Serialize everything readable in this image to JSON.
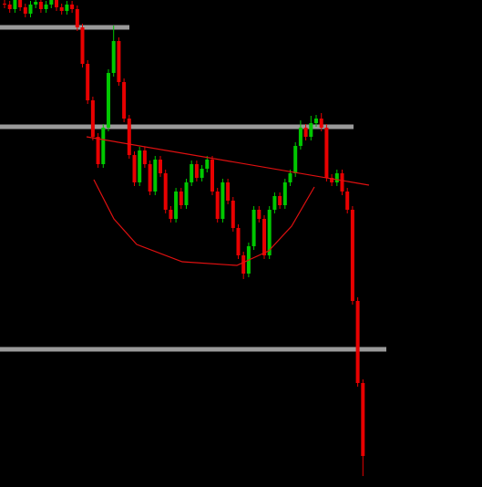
{
  "chart_data": {
    "type": "candlestick",
    "open": [
      530,
      529,
      524,
      534,
      526,
      519,
      529,
      532,
      524,
      529,
      534,
      526,
      522,
      529,
      524,
      504,
      464,
      424,
      384,
      354,
      394,
      454,
      489,
      444,
      404,
      364,
      334,
      369,
      354,
      324,
      359,
      344,
      304,
      294,
      324,
      309,
      334,
      354,
      339,
      349,
      359,
      324,
      294,
      334,
      314,
      284,
      254,
      234,
      264,
      304,
      294,
      254,
      304,
      319,
      309,
      334,
      344,
      374,
      394,
      384,
      399,
      404,
      394,
      339,
      334,
      344,
      324,
      304,
      204,
      114
    ],
    "high": [
      534,
      533,
      538,
      538,
      530,
      533,
      536,
      536,
      533,
      538,
      538,
      530,
      533,
      533,
      528,
      508,
      468,
      428,
      388,
      398,
      458,
      506,
      493,
      448,
      408,
      368,
      373,
      373,
      358,
      363,
      363,
      348,
      308,
      328,
      328,
      338,
      358,
      358,
      353,
      363,
      363,
      328,
      338,
      338,
      318,
      288,
      258,
      268,
      308,
      308,
      298,
      308,
      323,
      323,
      338,
      348,
      378,
      402,
      398,
      407,
      408,
      410,
      398,
      343,
      348,
      348,
      328,
      308,
      208,
      118
    ],
    "low": [
      525,
      520,
      520,
      522,
      515,
      515,
      525,
      520,
      520,
      525,
      522,
      518,
      518,
      520,
      500,
      460,
      420,
      380,
      350,
      350,
      390,
      450,
      440,
      400,
      360,
      330,
      330,
      350,
      320,
      320,
      340,
      300,
      290,
      290,
      305,
      305,
      330,
      335,
      335,
      345,
      320,
      290,
      290,
      310,
      280,
      250,
      228,
      230,
      260,
      290,
      250,
      250,
      300,
      305,
      305,
      330,
      340,
      370,
      380,
      380,
      395,
      390,
      335,
      330,
      330,
      320,
      300,
      200,
      110,
      12
    ],
    "close": [
      529,
      524,
      534,
      526,
      519,
      529,
      532,
      524,
      529,
      534,
      526,
      522,
      529,
      524,
      504,
      464,
      424,
      384,
      354,
      394,
      454,
      489,
      444,
      404,
      364,
      334,
      369,
      354,
      324,
      359,
      344,
      304,
      294,
      324,
      309,
      334,
      354,
      339,
      349,
      359,
      324,
      294,
      334,
      314,
      284,
      254,
      234,
      264,
      304,
      294,
      254,
      304,
      319,
      309,
      334,
      344,
      374,
      394,
      384,
      399,
      404,
      394,
      339,
      334,
      344,
      324,
      304,
      204,
      114,
      34
    ],
    "ylim": [
      0,
      534
    ],
    "up_color": "#00c800",
    "down_color": "#e80000",
    "levels": [
      504,
      395,
      151
    ],
    "level_color": "#9a9a9a"
  }
}
